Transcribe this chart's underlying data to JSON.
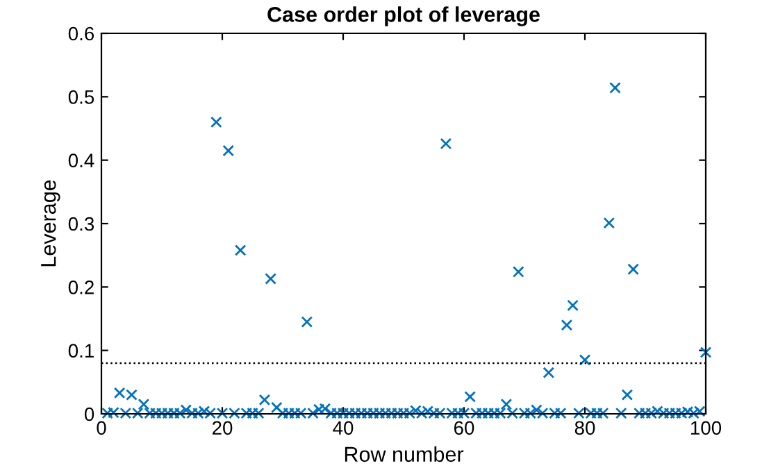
{
  "chart_data": {
    "type": "scatter",
    "title": "Case order plot of leverage",
    "xlabel": "Row number",
    "ylabel": "Leverage",
    "x": [
      1,
      2,
      3,
      4,
      5,
      6,
      7,
      8,
      9,
      10,
      11,
      12,
      13,
      14,
      15,
      16,
      17,
      18,
      19,
      20,
      21,
      22,
      23,
      24,
      25,
      26,
      27,
      28,
      29,
      30,
      31,
      32,
      33,
      34,
      35,
      36,
      37,
      38,
      39,
      40,
      41,
      42,
      43,
      44,
      45,
      46,
      47,
      48,
      49,
      50,
      51,
      52,
      53,
      54,
      55,
      56,
      57,
      58,
      59,
      60,
      61,
      62,
      63,
      64,
      65,
      66,
      67,
      68,
      69,
      70,
      71,
      72,
      73,
      74,
      75,
      76,
      77,
      78,
      79,
      80,
      81,
      82,
      83,
      84,
      85,
      86,
      87,
      88,
      89,
      90,
      91,
      92,
      93,
      94,
      95,
      96,
      97,
      98,
      99,
      100
    ],
    "series": [
      {
        "color": "#0072bd",
        "values": [
          0.001,
          0.002,
          0.033,
          0.001,
          0.03,
          0.001,
          0.015,
          0.001,
          0.001,
          0.001,
          0.001,
          0.001,
          0.001,
          0.006,
          0.001,
          0.001,
          0.004,
          0.001,
          0.46,
          0.001,
          0.415,
          0.001,
          0.258,
          0.001,
          0.001,
          0.001,
          0.022,
          0.213,
          0.01,
          0.001,
          0.001,
          0.001,
          0.001,
          0.145,
          0.001,
          0.007,
          0.008,
          0.001,
          0.001,
          0.001,
          0.001,
          0.001,
          0.001,
          0.001,
          0.001,
          0.001,
          0.001,
          0.001,
          0.001,
          0.001,
          0.001,
          0.005,
          0.001,
          0.004,
          0.001,
          0.001,
          0.426,
          0.001,
          0.001,
          0.001,
          0.027,
          0.001,
          0.001,
          0.001,
          0.001,
          0.001,
          0.015,
          0.001,
          0.224,
          0.001,
          0.001,
          0.006,
          0.001,
          0.065,
          0.001,
          0.001,
          0.14,
          0.171,
          0.001,
          0.085,
          0.001,
          0.001,
          0.001,
          0.301,
          0.514,
          0.001,
          0.03,
          0.228,
          0.001,
          0.001,
          0.001,
          0.004,
          0.001,
          0.001,
          0.001,
          0.001,
          0.003,
          0.001,
          0.004,
          0.097
        ]
      }
    ],
    "marker": "cross",
    "xlim": [
      0,
      100
    ],
    "ylim": [
      0,
      0.6
    ],
    "xticks": [
      0,
      20,
      40,
      60,
      80,
      100
    ],
    "yticks": [
      0,
      0.1,
      0.2,
      0.3,
      0.4,
      0.5,
      0.6
    ],
    "ref_lines": [
      {
        "axis": "y",
        "value": 0.08,
        "color": "#000000",
        "line_style": "dotted"
      }
    ],
    "grid": false,
    "legend": false
  }
}
